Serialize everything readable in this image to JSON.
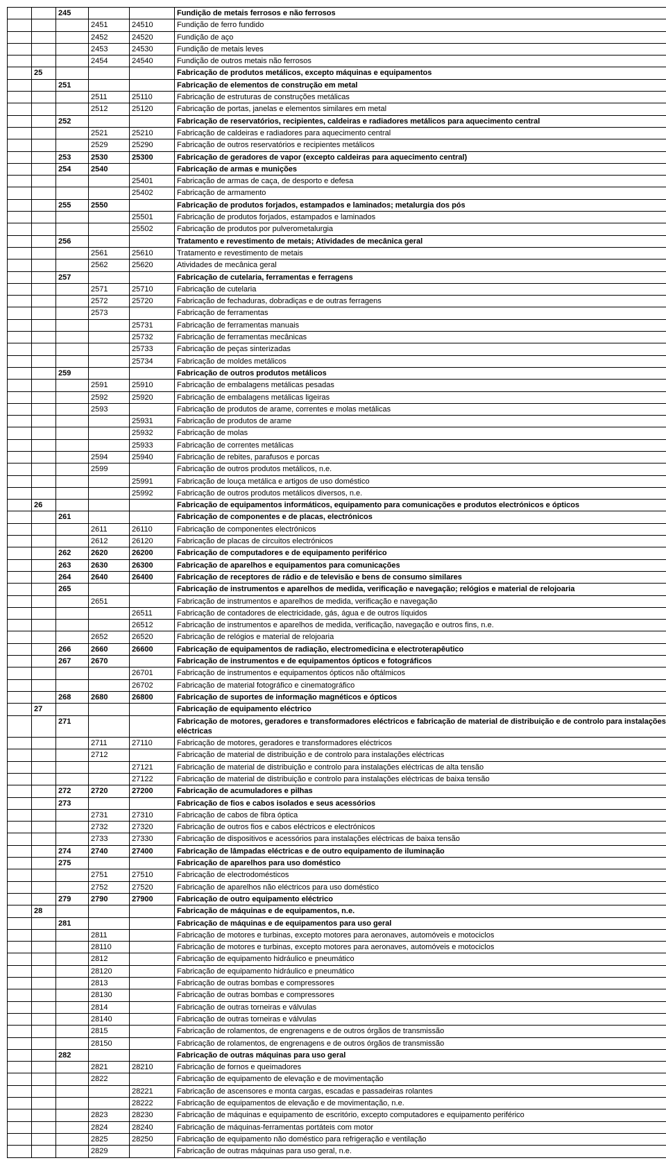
{
  "rows": [
    {
      "c3": "245",
      "c6": "Fundição de metais ferrosos e não ferrosos",
      "bold": true
    },
    {
      "c4": "2451",
      "c5": "24510",
      "c6": "Fundição de ferro fundido"
    },
    {
      "c4": "2452",
      "c5": "24520",
      "c6": "Fundição de aço"
    },
    {
      "c4": "2453",
      "c5": "24530",
      "c6": "Fundição de metais leves"
    },
    {
      "c4": "2454",
      "c5": "24540",
      "c6": "Fundição de outros metais não ferrosos"
    },
    {
      "c2": "25",
      "c6": "Fabricação de produtos metálicos, excepto máquinas e equipamentos",
      "bold": true
    },
    {
      "c3": "251",
      "c6": "Fabricação de elementos de construção em metal",
      "bold": true
    },
    {
      "c4": "2511",
      "c5": "25110",
      "c6": "Fabricação de estruturas de construções metálicas"
    },
    {
      "c4": "2512",
      "c5": "25120",
      "c6": "Fabricação de portas, janelas e elementos similares em metal"
    },
    {
      "c3": "252",
      "c6": "Fabricação de reservatórios, recipientes, caldeiras e radiadores metálicos para aquecimento central",
      "bold": true
    },
    {
      "c4": "2521",
      "c5": "25210",
      "c6": "Fabricação de caldeiras e radiadores para aquecimento central"
    },
    {
      "c4": "2529",
      "c5": "25290",
      "c6": "Fabricação de outros reservatórios e recipientes metálicos"
    },
    {
      "c3": "253",
      "c4": "2530",
      "c5": "25300",
      "c6": "Fabricação de geradores de vapor (excepto caldeiras para aquecimento central)",
      "bold": true
    },
    {
      "c3": "254",
      "c4": "2540",
      "c6": "Fabricação de armas e munições",
      "bold": true
    },
    {
      "c5": "25401",
      "c6": "Fabricação de armas de caça, de desporto e defesa"
    },
    {
      "c5": "25402",
      "c6": "Fabricação de armamento"
    },
    {
      "c3": "255",
      "c4": "2550",
      "c6": "Fabricação de produtos forjados, estampados e laminados; metalurgia dos pós",
      "bold": true
    },
    {
      "c5": "25501",
      "c6": "Fabricação de produtos forjados, estampados e laminados"
    },
    {
      "c5": "25502",
      "c6": "Fabricação de produtos por pulverometalurgia"
    },
    {
      "c3": "256",
      "c6": "Tratamento e revestimento de metais; Atividades de mecânica geral",
      "bold": true
    },
    {
      "c4": "2561",
      "c5": "25610",
      "c6": "Tratamento e revestimento de metais"
    },
    {
      "c4": "2562",
      "c5": "25620",
      "c6": "Atividades de mecânica geral"
    },
    {
      "c3": "257",
      "c6": "Fabricação de cutelaria, ferramentas e ferragens",
      "bold": true
    },
    {
      "c4": "2571",
      "c5": "25710",
      "c6": "Fabricação de cutelaria"
    },
    {
      "c4": "2572",
      "c5": "25720",
      "c6": "Fabricação de fechaduras, dobradiças e de outras ferragens"
    },
    {
      "c4": "2573",
      "c6": "Fabricação de ferramentas"
    },
    {
      "c5": "25731",
      "c6": "Fabricação de ferramentas manuais"
    },
    {
      "c5": "25732",
      "c6": "Fabricação de ferramentas mecânicas"
    },
    {
      "c5": "25733",
      "c6": "Fabricação de peças sinterizadas"
    },
    {
      "c5": "25734",
      "c6": "Fabricação de moldes metálicos"
    },
    {
      "c3": "259",
      "c6": "Fabricação de outros produtos metálicos",
      "bold": true
    },
    {
      "c4": "2591",
      "c5": "25910",
      "c6": "Fabricação de embalagens metálicas pesadas"
    },
    {
      "c4": "2592",
      "c5": "25920",
      "c6": "Fabricação de embalagens metálicas ligeiras"
    },
    {
      "c4": "2593",
      "c6": "Fabricação de produtos de arame, correntes e molas metálicas"
    },
    {
      "c5": "25931",
      "c6": "Fabricação de produtos de arame"
    },
    {
      "c5": "25932",
      "c6": "Fabricação de molas"
    },
    {
      "c5": "25933",
      "c6": "Fabricação de correntes metálicas"
    },
    {
      "c4": "2594",
      "c5": "25940",
      "c6": "Fabricação de rebites, parafusos e porcas"
    },
    {
      "c4": "2599",
      "c6": "Fabricação de outros produtos metálicos, n.e."
    },
    {
      "c5": "25991",
      "c6": "Fabricação de louça metálica e artigos de uso doméstico"
    },
    {
      "c5": "25992",
      "c6": "Fabricação de outros produtos metálicos diversos,  n.e."
    },
    {
      "c2": "26",
      "c6": "Fabricação de equipamentos informáticos, equipamento para comunicações e produtos electrónicos e ópticos",
      "bold": true
    },
    {
      "c3": "261",
      "c6": "Fabricação de componentes  e de placas, electrónicos",
      "bold": true
    },
    {
      "c4": "2611",
      "c5": "26110",
      "c6": "Fabricação de componentes electrónicos"
    },
    {
      "c4": "2612",
      "c5": "26120",
      "c6": "Fabricação de placas de circuitos electrónicos"
    },
    {
      "c3": "262",
      "c4": "2620",
      "c5": "26200",
      "c6": "Fabricação de computadores e de equipamento periférico",
      "bold": true
    },
    {
      "c3": "263",
      "c4": "2630",
      "c5": "26300",
      "c6": "Fabricação de aparelhos e equipamentos para comunicações",
      "bold": true
    },
    {
      "c3": "264",
      "c4": "2640",
      "c5": "26400",
      "c6": "Fabricação de receptores  de rádio e de televisão e bens de consumo similares",
      "bold": true
    },
    {
      "c3": "265",
      "c6": "Fabricação de instrumentos e aparelhos de medida, verificação e navegação; relógios e material de relojoaria",
      "bold": true
    },
    {
      "c4": "2651",
      "c6": "Fabricação de instrumentos e aparelhos de medida, verificação e navegação"
    },
    {
      "c5": "26511",
      "c6": "Fabricação de contadores de electricidade, gás, água e de outros líquidos"
    },
    {
      "c5": "26512",
      "c6": "Fabricação de instrumentos e aparelhos de medida, verificação, navegação e outros fins, n.e."
    },
    {
      "c4": "2652",
      "c5": "26520",
      "c6": "Fabricação de relógios e material de relojoaria"
    },
    {
      "c3": "266",
      "c4": "2660",
      "c5": "26600",
      "c6": "Fabricação de equipamentos de radiação, electromedicina e electroterapêutico",
      "bold": true
    },
    {
      "c3": "267",
      "c4": "2670",
      "c6": "Fabricação de instrumentos e de equipamentos  ópticos e fotográficos",
      "bold": true
    },
    {
      "c5": "26701",
      "c6": "Fabricação de instrumentos e equipamentos ópticos não oftálmicos"
    },
    {
      "c5": "26702",
      "c6": "Fabricação de material fotográfico e cinematográfico"
    },
    {
      "c3": "268",
      "c4": "2680",
      "c5": "26800",
      "c6": "Fabricação de suportes de informação magnéticos e ópticos",
      "bold": true
    },
    {
      "c2": "27",
      "c6": "Fabricação de equipamento eléctrico",
      "bold": true
    },
    {
      "c3": "271",
      "c6": "Fabricação de motores, geradores e transformadores eléctricos e fabricação de material de distribuição e de controlo para instalações eléctricas",
      "bold": true
    },
    {
      "c4": "2711",
      "c5": "27110",
      "c6": "Fabricação de motores, geradores e transformadores eléctricos"
    },
    {
      "c4": "2712",
      "c6": "Fabricação de material de distribuição e de controlo para instalações eléctricas"
    },
    {
      "c5": "27121",
      "c6": "Fabricação de material de distribuição e controlo para instalações eléctricas de alta tensão"
    },
    {
      "c5": "27122",
      "c6": "Fabricação de material de distribuição e controlo para instalações eléctricas de baixa tensão"
    },
    {
      "c3": "272",
      "c4": "2720",
      "c5": "27200",
      "c6": "Fabricação de acumuladores e pilhas",
      "bold": true
    },
    {
      "c3": "273",
      "c6": "Fabricação de fios e cabos isolados e seus acessórios",
      "bold": true
    },
    {
      "c4": "2731",
      "c5": "27310",
      "c6": "Fabricação de cabos de fibra óptica"
    },
    {
      "c4": "2732",
      "c5": "27320",
      "c6": "Fabricação de outros fios e cabos eléctricos e electrónicos"
    },
    {
      "c4": "2733",
      "c5": "27330",
      "c6": "Fabricação de dispositivos e acessórios para instalações eléctricas de baixa tensão"
    },
    {
      "c3": "274",
      "c4": "2740",
      "c5": "27400",
      "c6": "Fabricação de lâmpadas eléctricas e de outro equipamento de iluminação",
      "bold": true
    },
    {
      "c3": "275",
      "c6": "Fabricação de aparelhos para uso doméstico",
      "bold": true
    },
    {
      "c4": "2751",
      "c5": "27510",
      "c6": "Fabricação de electrodomésticos"
    },
    {
      "c4": "2752",
      "c5": "27520",
      "c6": "Fabricação de aparelhos não eléctricos para uso doméstico"
    },
    {
      "c3": "279",
      "c4": "2790",
      "c5": "27900",
      "c6": "Fabricação de outro equipamento eléctrico",
      "bold": true
    },
    {
      "c2": "28",
      "c6": "Fabricação de máquinas e de equipamentos, n.e.",
      "bold": true
    },
    {
      "c3": "281",
      "c6": "Fabricação de máquinas e de equipamentos para uso geral",
      "bold": true
    },
    {
      "c4": "2811",
      "c6": "Fabricação de motores e turbinas, excepto motores para aeronaves, automóveis e motociclos"
    },
    {
      "c4": "28110",
      "c6": "Fabricação de motores e turbinas, excepto motores para aeronaves, automóveis e motociclos"
    },
    {
      "c4": "2812",
      "c6": "Fabricação de equipamento hidráulico e pneumático"
    },
    {
      "c4": "28120",
      "c6": "Fabricação de equipamento hidráulico e pneumático"
    },
    {
      "c4": "2813",
      "c6": "Fabricação de outras bombas e compressores"
    },
    {
      "c4": "28130",
      "c6": "Fabricação de outras bombas e compressores"
    },
    {
      "c4": "2814",
      "c6": "Fabricação de outras torneiras e válvulas"
    },
    {
      "c4": "28140",
      "c6": "Fabricação de  outras torneiras e válvulas"
    },
    {
      "c4": "2815",
      "c6": "Fabricação de rolamentos, de engrenagens e de outros órgãos de transmissão"
    },
    {
      "c4": "28150",
      "c6": "Fabricação de rolamentos, de engrenagens e de outros órgãos de transmissão"
    },
    {
      "c3": "282",
      "c6": "Fabricação de outras máquinas para uso geral",
      "bold": true
    },
    {
      "c4": "2821",
      "c5": "28210",
      "c6": "Fabricação de fornos e queimadores"
    },
    {
      "c4": "2822",
      "c6": "Fabricação de equipamento de elevação e de movimentação"
    },
    {
      "c5": "28221",
      "c6": "Fabricação de ascensores e monta cargas, escadas e passadeiras rolantes"
    },
    {
      "c5": "28222",
      "c6": "Fabricação de equipamentos de elevação e de movimentação, n.e."
    },
    {
      "c4": "2823",
      "c5": "28230",
      "c6": "Fabricação de máquinas e equipamento de escritório, excepto computadores e equipamento periférico"
    },
    {
      "c4": "2824",
      "c5": "28240",
      "c6": "Fabricação de máquinas-ferramentas portáteis com motor"
    },
    {
      "c4": "2825",
      "c5": "28250",
      "c6": "Fabricação de equipamento não doméstico para refrigeração e ventilação"
    },
    {
      "c4": "2829",
      "c6": "Fabricação de outras máquinas para uso geral, n.e."
    }
  ]
}
